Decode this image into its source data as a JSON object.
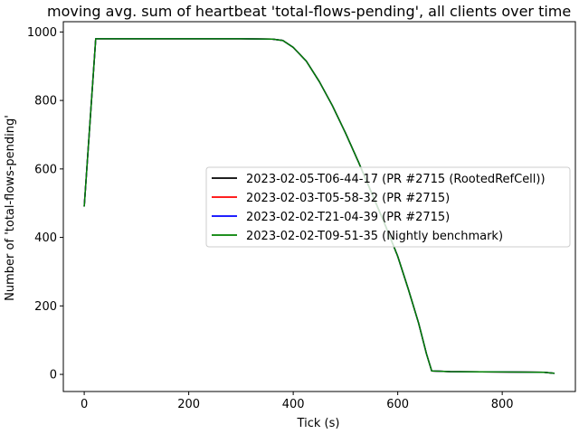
{
  "chart_data": {
    "type": "line",
    "title": "moving avg. sum of heartbeat 'total-flows-pending', all clients over time",
    "xlabel": "Tick (s)",
    "ylabel": "Number of 'total-flows-pending'",
    "xlim": [
      -40,
      940
    ],
    "ylim": [
      -50,
      1030
    ],
    "xticks": [
      0,
      200,
      400,
      600,
      800
    ],
    "yticks": [
      0,
      200,
      400,
      600,
      800,
      1000
    ],
    "grid": false,
    "legend_position": "center-right",
    "series": [
      {
        "name": "2023-02-05-T06-44-17 (PR #2715 (RootedRefCell))",
        "color": "#000000",
        "x": [
          0,
          22,
          100,
          200,
          300,
          360,
          380,
          400,
          425,
          450,
          475,
          500,
          525,
          550,
          575,
          600,
          620,
          640,
          655,
          665,
          700,
          800,
          880,
          900
        ],
        "y": [
          490,
          980,
          980,
          980,
          980,
          979,
          975,
          955,
          915,
          855,
          785,
          705,
          620,
          530,
          440,
          345,
          250,
          150,
          60,
          10,
          8,
          7,
          6,
          3
        ]
      },
      {
        "name": "2023-02-03-T05-58-32 (PR #2715)",
        "color": "#ff0000",
        "x": [
          0,
          22,
          100,
          200,
          300,
          360,
          380,
          400,
          425,
          450,
          475,
          500,
          525,
          550,
          575,
          600,
          620,
          640,
          655,
          665,
          700,
          800,
          880,
          900
        ],
        "y": [
          490,
          980,
          980,
          980,
          980,
          979,
          975,
          955,
          915,
          855,
          785,
          705,
          620,
          530,
          440,
          345,
          250,
          150,
          60,
          10,
          8,
          7,
          6,
          3
        ]
      },
      {
        "name": "2023-02-02-T21-04-39 (PR #2715)",
        "color": "#0000ff",
        "x": [
          0,
          22,
          100,
          200,
          300,
          360,
          380,
          400,
          425,
          450,
          475,
          500,
          525,
          550,
          575,
          600,
          620,
          640,
          655,
          665,
          700,
          800,
          880,
          900
        ],
        "y": [
          490,
          980,
          980,
          980,
          980,
          979,
          975,
          955,
          915,
          855,
          785,
          705,
          620,
          530,
          440,
          345,
          250,
          150,
          60,
          10,
          8,
          7,
          6,
          3
        ]
      },
      {
        "name": "2023-02-02-T09-51-35 (Nightly benchmark)",
        "color": "#008000",
        "x": [
          0,
          22,
          100,
          200,
          300,
          360,
          380,
          400,
          425,
          450,
          475,
          500,
          525,
          550,
          575,
          600,
          620,
          640,
          655,
          665,
          700,
          800,
          880,
          900
        ],
        "y": [
          490,
          980,
          980,
          980,
          980,
          979,
          975,
          955,
          915,
          855,
          785,
          705,
          620,
          530,
          440,
          345,
          250,
          150,
          60,
          10,
          8,
          7,
          6,
          3
        ]
      }
    ]
  }
}
